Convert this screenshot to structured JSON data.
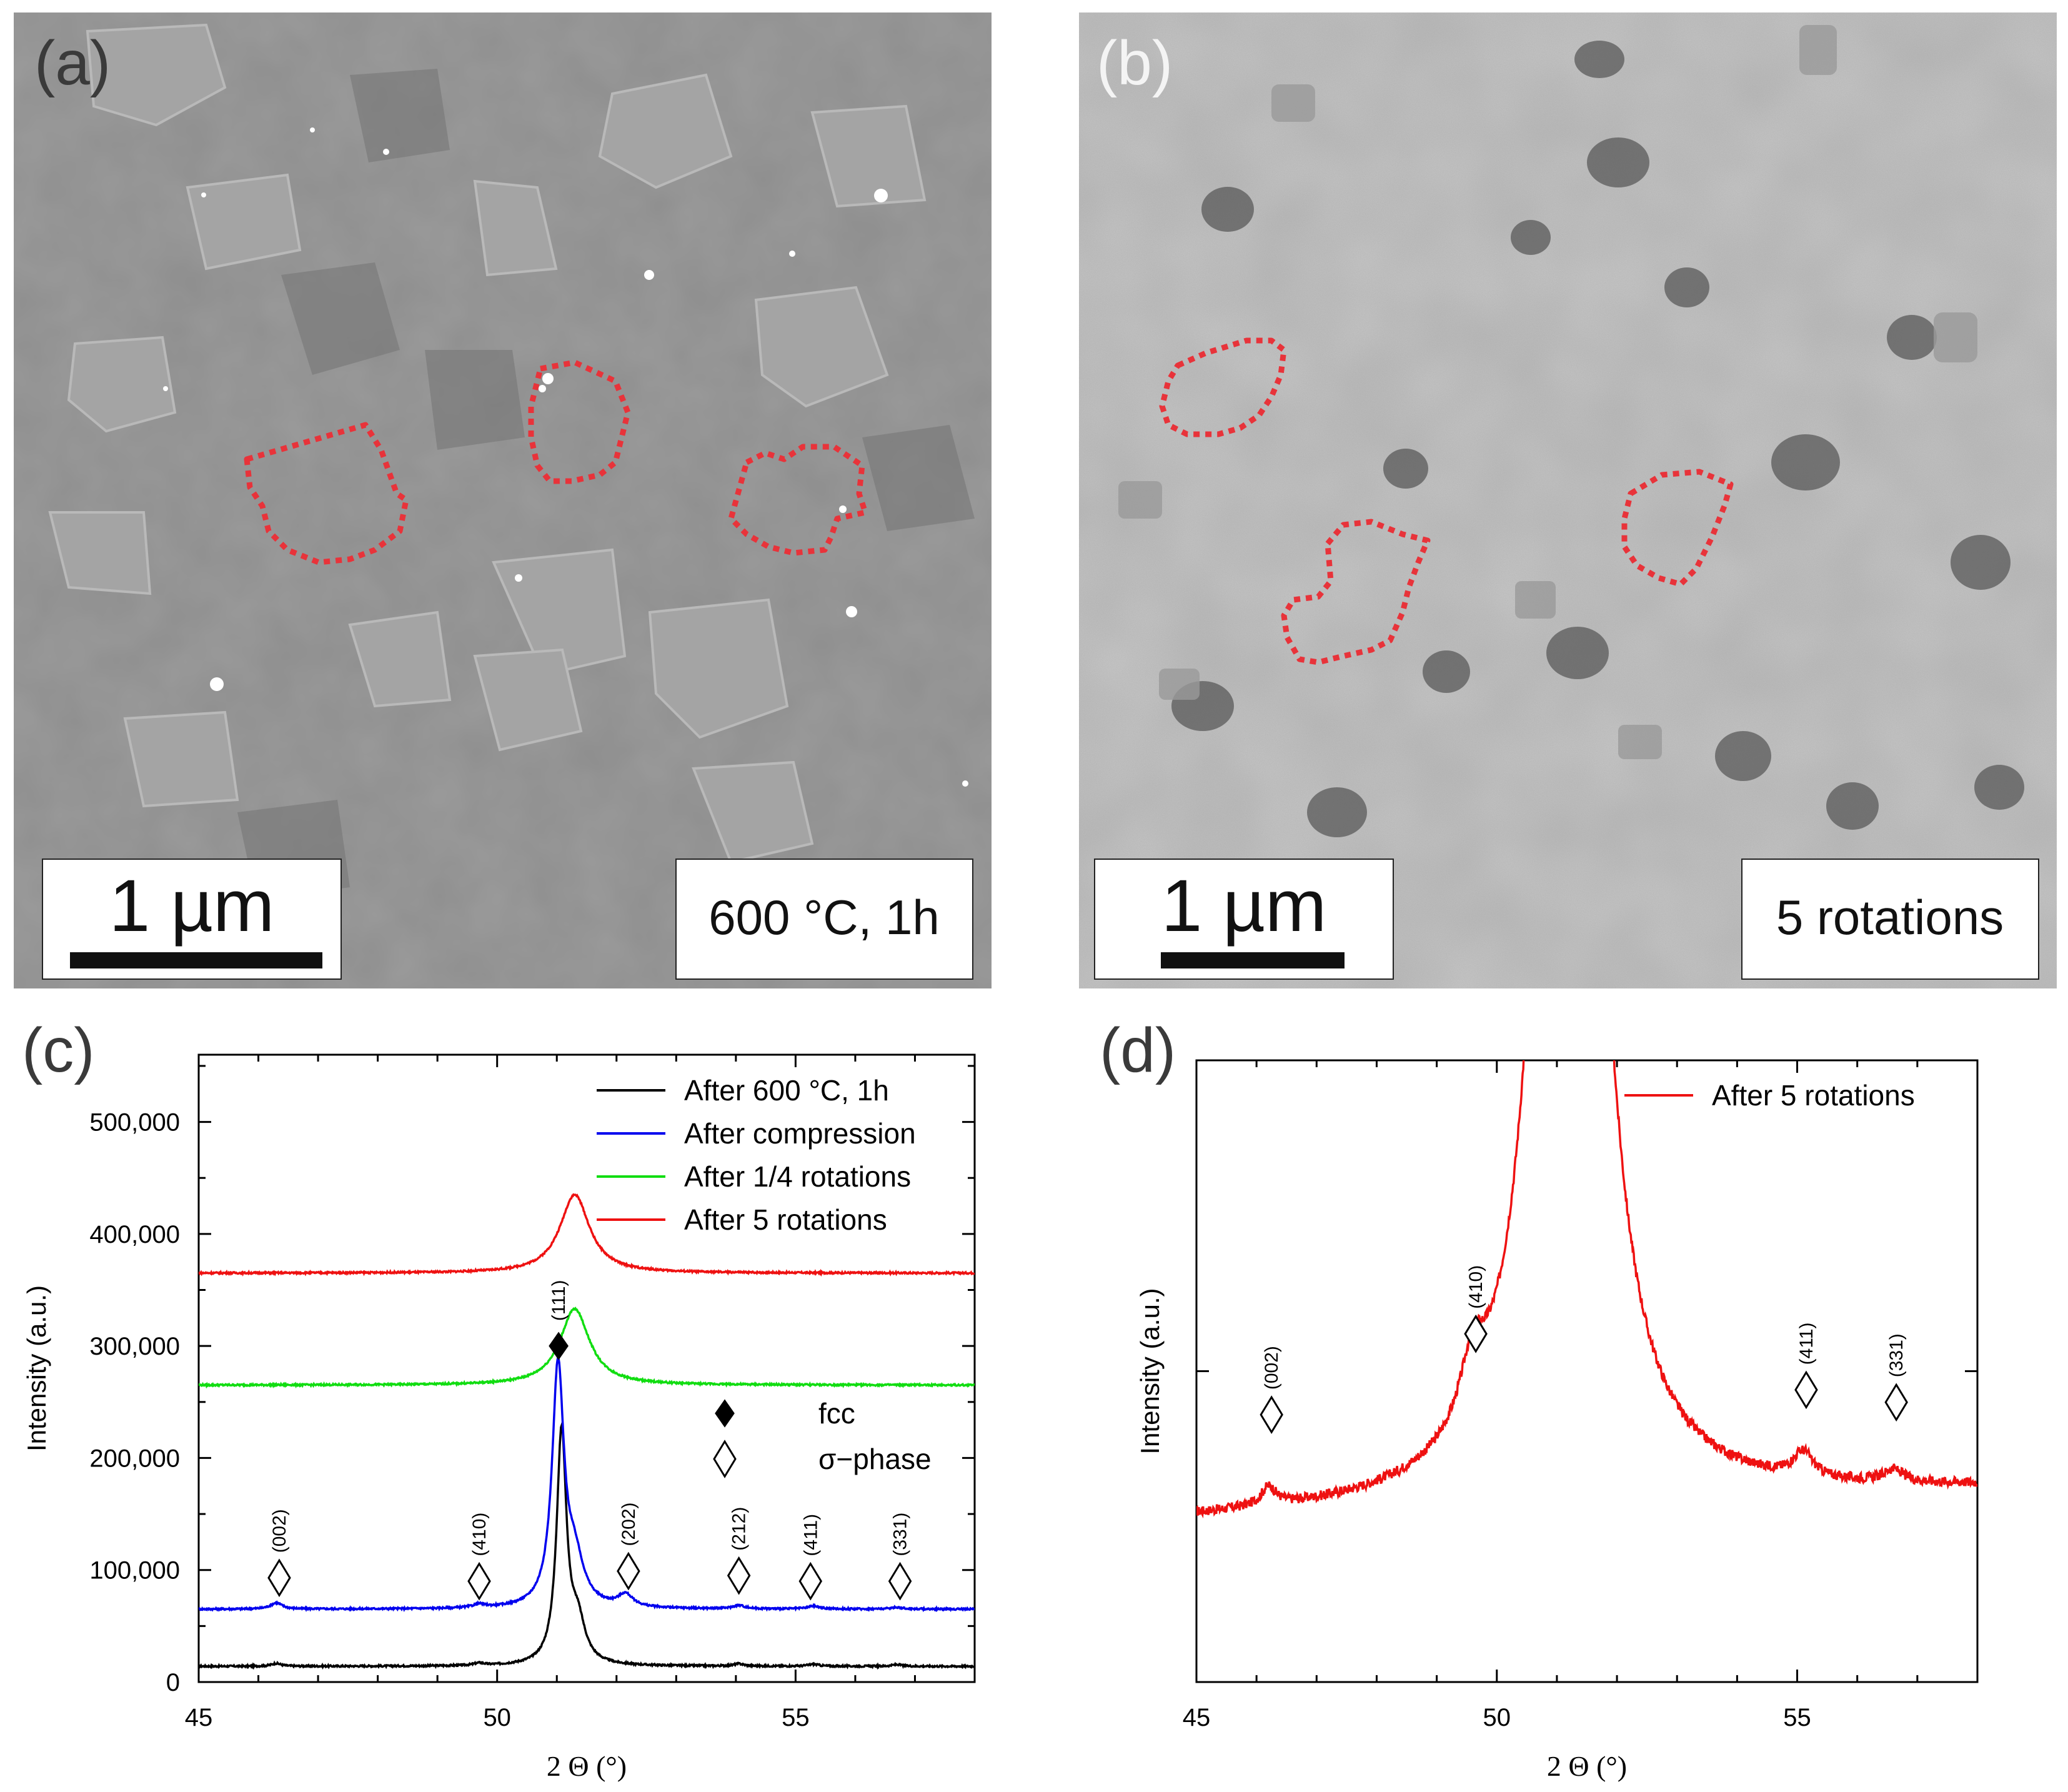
{
  "panels": {
    "a": {
      "label": "(a)",
      "scale_bar": "1 µm",
      "condition": "600 °C, 1h"
    },
    "b": {
      "label": "(b)",
      "scale_bar": "1 µm",
      "condition": "5 rotations"
    },
    "c": {
      "label": "(c)"
    },
    "d": {
      "label": "(d)"
    }
  },
  "colors": {
    "black": "#000000",
    "blue": "#0000ee",
    "green": "#11dd11",
    "red": "#ee1111",
    "outline_dashed": "#e8333a"
  },
  "chart_data": [
    {
      "panel": "c",
      "type": "line",
      "title": "",
      "xlabel": "2 Θ (°)",
      "ylabel": "Intensity (a.u.)",
      "xlim": [
        45,
        58
      ],
      "ylim": [
        0,
        560000
      ],
      "xticks": [
        45,
        50,
        55
      ],
      "xtick_labels": [
        "45",
        "50",
        "55"
      ],
      "yticks": [
        0,
        100000,
        200000,
        300000,
        400000,
        500000
      ],
      "ytick_labels": [
        "0",
        "100,000",
        "200,000",
        "300,000",
        "400,000",
        "500,000"
      ],
      "legend_position": "top-right",
      "series": [
        {
          "name": "After 600 °C, 1h",
          "color": "#000000",
          "baseline": 14000,
          "peaks": [
            [
              51.08,
              207000,
              0.1
            ],
            [
              51.35,
              35000,
              0.15
            ],
            [
              46.3,
              2500,
              0.1
            ],
            [
              49.7,
              2000,
              0.1
            ],
            [
              54.05,
              2000,
              0.1
            ],
            [
              55.3,
              1800,
              0.1
            ],
            [
              56.7,
              1500,
              0.1
            ]
          ]
        },
        {
          "name": "After compression",
          "color": "#0000ee",
          "baseline": 65000,
          "peaks": [
            [
              51.02,
              213000,
              0.12
            ],
            [
              51.3,
              38000,
              0.18
            ],
            [
              46.3,
              5500,
              0.12
            ],
            [
              49.7,
              3000,
              0.12
            ],
            [
              52.15,
              11000,
              0.15
            ],
            [
              54.05,
              3000,
              0.12
            ],
            [
              55.3,
              2500,
              0.12
            ],
            [
              56.7,
              1500,
              0.12
            ]
          ]
        },
        {
          "name": "After 1/4 rotations",
          "color": "#11dd11",
          "baseline": 265000,
          "peaks": [
            [
              51.3,
              68000,
              0.3
            ]
          ]
        },
        {
          "name": "After 5 rotations",
          "color": "#ee1111",
          "baseline": 365000,
          "peaks": [
            [
              51.3,
              70000,
              0.3
            ]
          ]
        }
      ],
      "marker_legend": [
        {
          "symbol": "filled-diamond",
          "label": "fcc"
        },
        {
          "symbol": "open-diamond",
          "label": "σ−phase"
        }
      ],
      "annotations": [
        {
          "text": "(111)",
          "x": 51.03,
          "y": 300000,
          "symbol": "filled-diamond"
        },
        {
          "text": "(002)",
          "x": 46.35,
          "y": 93000,
          "symbol": "open-diamond"
        },
        {
          "text": "(410)",
          "x": 49.7,
          "y": 90000,
          "symbol": "open-diamond"
        },
        {
          "text": "(202)",
          "x": 52.2,
          "y": 99000,
          "symbol": "open-diamond"
        },
        {
          "text": "(212)",
          "x": 54.05,
          "y": 95000,
          "symbol": "open-diamond"
        },
        {
          "text": "(411)",
          "x": 55.25,
          "y": 90000,
          "symbol": "open-diamond"
        },
        {
          "text": "(331)",
          "x": 56.75,
          "y": 90000,
          "symbol": "open-diamond"
        }
      ]
    },
    {
      "panel": "d",
      "type": "line",
      "title": "",
      "xlabel": "2 Θ (°)",
      "ylabel": "Intensity (a.u.)",
      "xlim": [
        45,
        58
      ],
      "ylim": [
        0,
        100
      ],
      "xticks": [
        45,
        50,
        55
      ],
      "xtick_labels": [
        "45",
        "50",
        "55"
      ],
      "y_tick_labels_shown": false,
      "legend_position": "top-right",
      "series": [
        {
          "name": "After 5 rotations",
          "color": "#ee1111",
          "baseline_start": 26,
          "baseline_end": 31,
          "peaks": [
            [
              51.2,
              300,
              0.42
            ],
            [
              49.6,
              10,
              0.25
            ],
            [
              46.2,
              3,
              0.15
            ],
            [
              55.1,
              4,
              0.2
            ],
            [
              56.6,
              2,
              0.2
            ]
          ]
        }
      ],
      "annotations": [
        {
          "text": "(002)",
          "x": 46.25,
          "y": 43,
          "symbol": "open-diamond"
        },
        {
          "text": "(410)",
          "x": 49.65,
          "y": 56,
          "symbol": "open-diamond"
        },
        {
          "text": "(411)",
          "x": 55.15,
          "y": 47,
          "symbol": "open-diamond"
        },
        {
          "text": "(331)",
          "x": 56.65,
          "y": 45,
          "symbol": "open-diamond"
        }
      ]
    }
  ]
}
